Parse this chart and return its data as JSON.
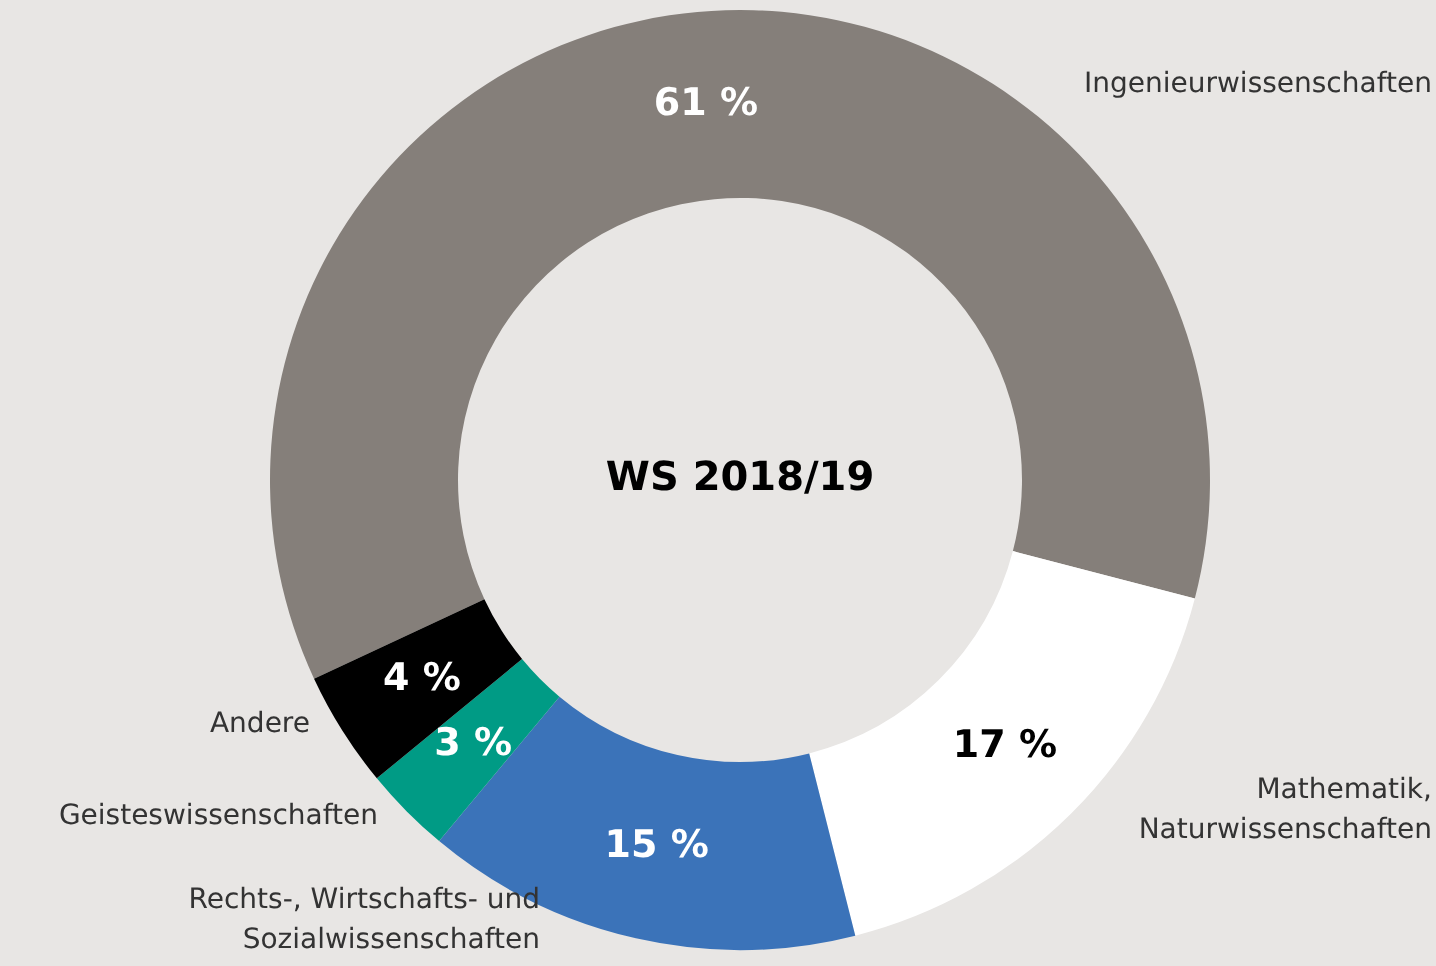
{
  "chart_data": {
    "type": "donut",
    "title": "WS 2018/19",
    "categories": [
      "Ingenieurwissenschaften",
      "Mathematik, Naturwissenschaften",
      "Rechts-, Wirtschafts- und Sozialwissenschaften",
      "Geisteswissenschaften",
      "Andere"
    ],
    "values": [
      61,
      17,
      15,
      3,
      4
    ],
    "colors": [
      "#857f7a",
      "#ffffff",
      "#3b73b9",
      "#009b85",
      "#000000"
    ],
    "value_labels": [
      "61 %",
      "17 %",
      "15 %",
      "3 %",
      "4 %"
    ],
    "legend": false
  }
}
